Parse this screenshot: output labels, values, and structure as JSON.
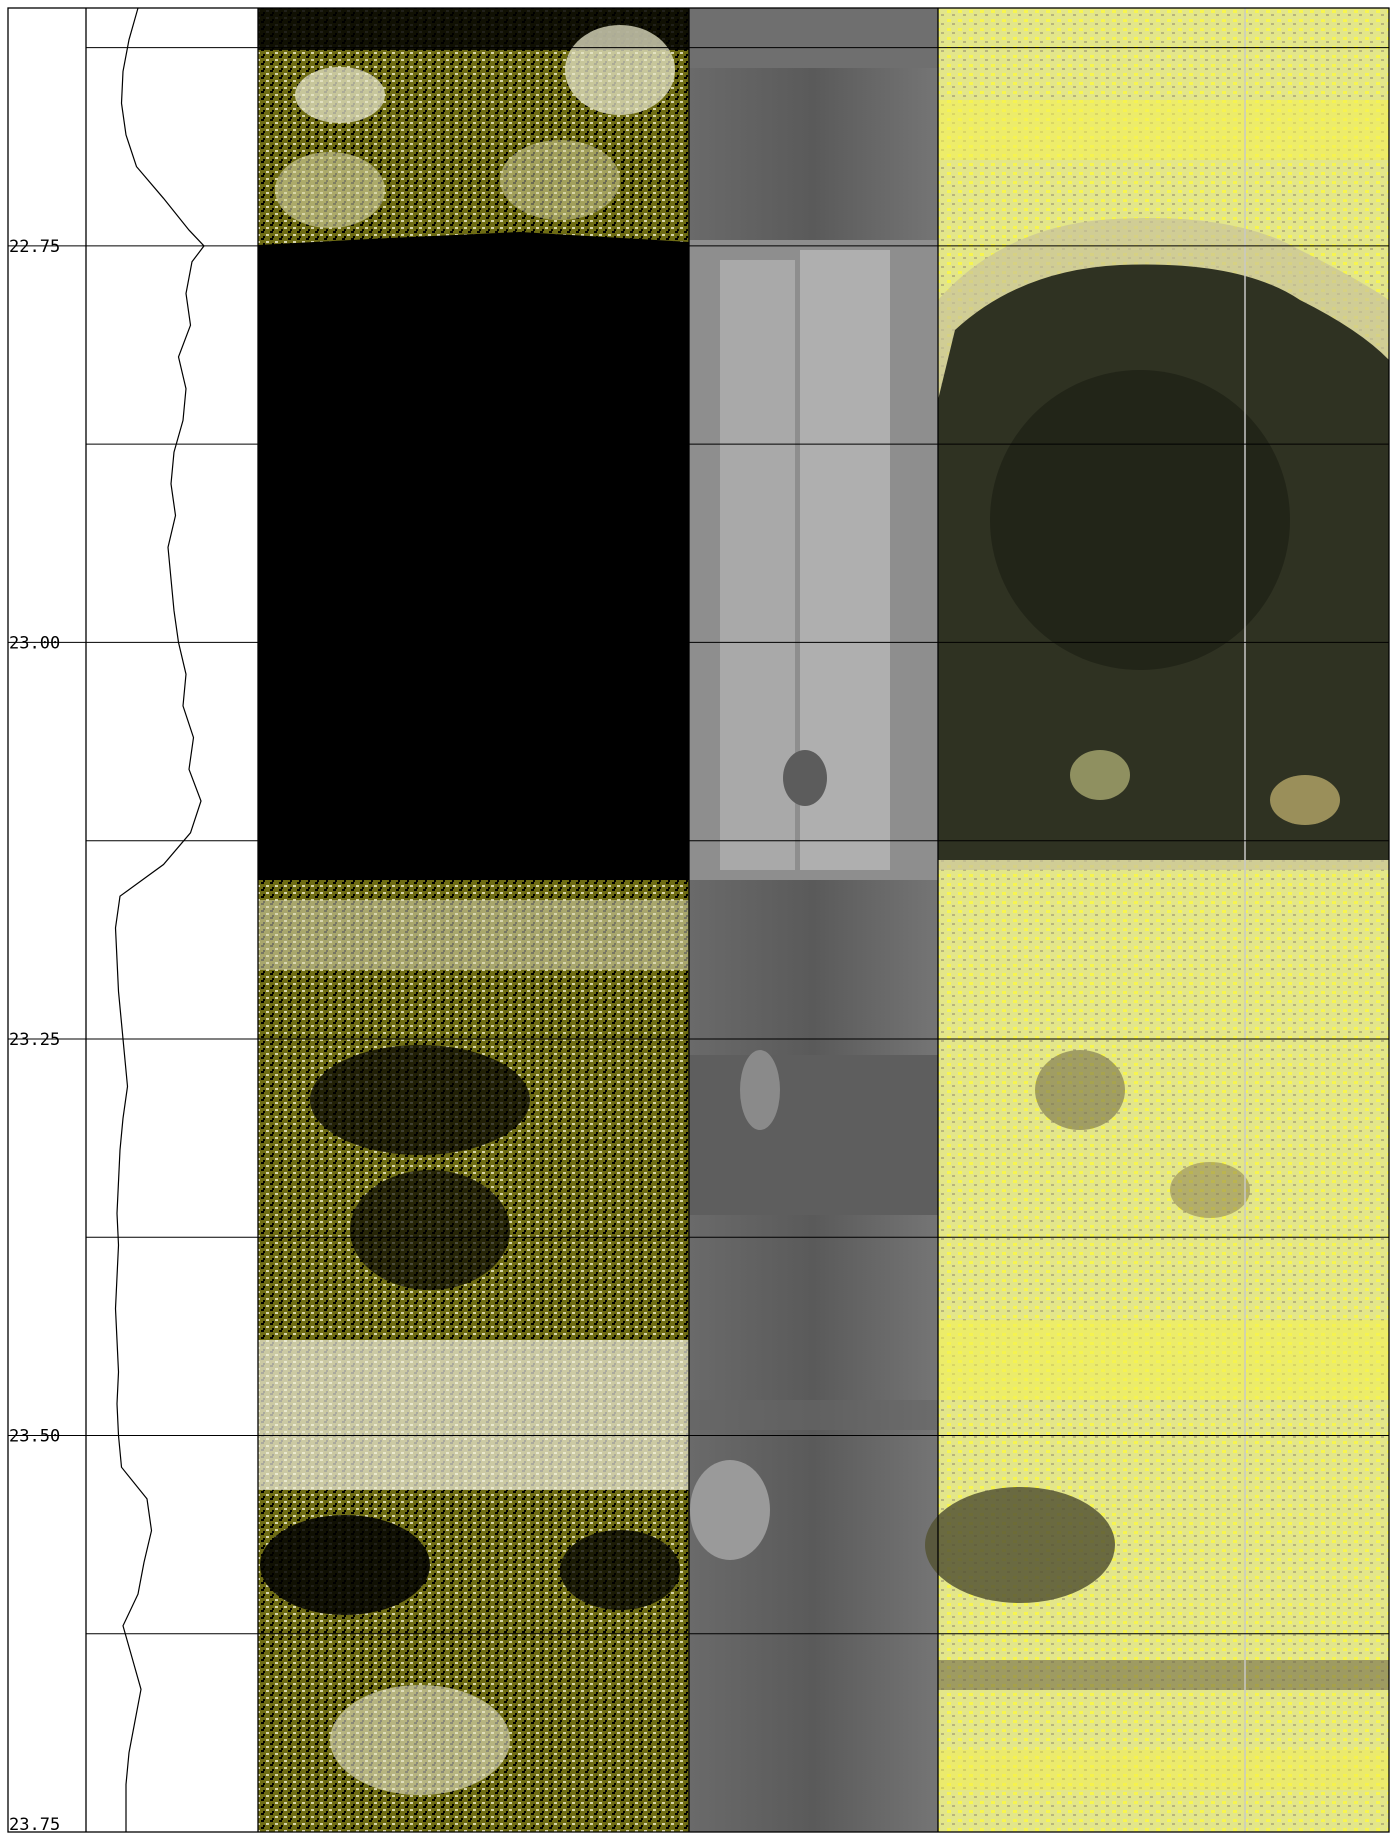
{
  "chart_data": {
    "type": "line",
    "orientation": "vertical-depth-log",
    "title": "",
    "ylabel": "",
    "depth_range": [
      22.6,
      23.75
    ],
    "y_inverted": true,
    "depth_ticks": [
      "22.75",
      "23.00",
      "23.25",
      "23.50",
      "23.75"
    ],
    "depth_tick_values": [
      22.75,
      23.0,
      23.25,
      23.5,
      23.75
    ],
    "gridline_depths": [
      22.625,
      22.75,
      22.875,
      23.0,
      23.125,
      23.25,
      23.375,
      23.5,
      23.625,
      23.75
    ],
    "grid": true,
    "series": [
      {
        "depth": [
          22.6,
          22.62,
          22.64,
          22.66,
          22.68,
          22.7,
          22.72,
          22.74,
          22.75,
          22.76,
          22.78,
          22.8,
          22.82,
          22.84,
          22.86,
          22.88,
          22.9,
          22.92,
          22.94,
          22.96,
          22.98,
          23.0,
          23.02,
          23.04,
          23.06,
          23.08,
          23.1,
          23.12,
          23.14,
          23.16,
          23.18,
          23.2,
          23.22,
          23.24,
          23.26,
          23.28,
          23.3,
          23.32,
          23.34,
          23.36,
          23.38,
          23.4,
          23.42,
          23.44,
          23.46,
          23.48,
          23.5,
          23.52,
          23.54,
          23.56,
          23.58,
          23.6,
          23.62,
          23.64,
          23.66,
          23.68,
          23.7,
          23.72,
          23.75
        ],
        "values": [
          0.28,
          0.22,
          0.18,
          0.17,
          0.2,
          0.27,
          0.45,
          0.62,
          0.72,
          0.64,
          0.6,
          0.63,
          0.55,
          0.6,
          0.58,
          0.52,
          0.5,
          0.53,
          0.48,
          0.5,
          0.52,
          0.55,
          0.6,
          0.58,
          0.65,
          0.62,
          0.7,
          0.63,
          0.45,
          0.16,
          0.13,
          0.14,
          0.15,
          0.17,
          0.19,
          0.21,
          0.18,
          0.16,
          0.15,
          0.14,
          0.15,
          0.14,
          0.13,
          0.14,
          0.15,
          0.14,
          0.15,
          0.17,
          0.34,
          0.37,
          0.32,
          0.28,
          0.18,
          0.24,
          0.3,
          0.26,
          0.22,
          0.2,
          0.2
        ]
      }
    ]
  },
  "image_tracks": [
    {
      "kind": "amplitude-image",
      "colors": [
        "#000000",
        "#6e6c14",
        "#a6a352",
        "#ffffff"
      ]
    },
    {
      "kind": "travel-time-image",
      "colors": [
        "#4a4a4a",
        "#8c8c8c",
        "#c0c0c0",
        "#ffffff"
      ]
    },
    {
      "kind": "optical-image",
      "colors": [
        "#e6ea8a",
        "#2a2d1d",
        "#fffd4a",
        "#7a7648"
      ]
    }
  ]
}
